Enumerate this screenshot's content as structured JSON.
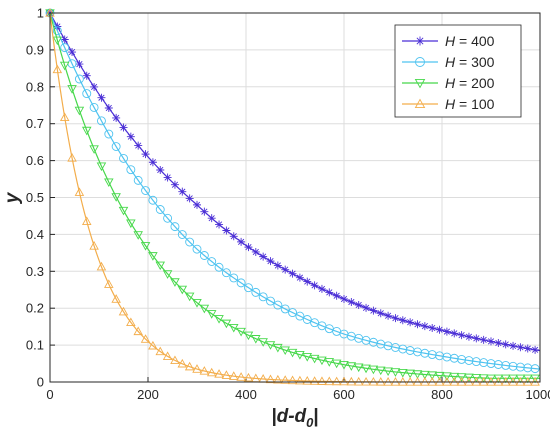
{
  "chart_data": {
    "type": "line",
    "xlabel": "|d-d0|",
    "xlabel_parts": {
      "main": "|d-d",
      "sub": "0",
      "end": "|"
    },
    "ylabel": "y",
    "xlim": [
      0,
      1000
    ],
    "ylim": [
      0,
      1
    ],
    "xticks": [
      "0",
      "200",
      "400",
      "600",
      "800",
      "1000"
    ],
    "yticks": [
      "0",
      "0.1",
      "0.2",
      "0.3",
      "0.4",
      "0.5",
      "0.6",
      "0.7",
      "0.8",
      "0.9",
      "1"
    ],
    "grid": true,
    "legend_position": "top-right",
    "x": [
      0,
      100,
      200,
      300,
      400,
      500,
      600,
      700,
      800,
      900,
      1000
    ],
    "series": [
      {
        "name": "H = 400",
        "marker": "asterisk",
        "color": "#4b2fd6",
        "values": [
          1,
          0.78,
          0.61,
          0.48,
          0.37,
          0.29,
          0.225,
          0.175,
          0.14,
          0.11,
          0.085
        ]
      },
      {
        "name": "H = 300",
        "marker": "circle",
        "color": "#4fc3f0",
        "values": [
          1,
          0.72,
          0.51,
          0.36,
          0.26,
          0.185,
          0.13,
          0.095,
          0.07,
          0.05,
          0.035
        ]
      },
      {
        "name": "H = 200",
        "marker": "triangle-down",
        "color": "#46d84a",
        "values": [
          1,
          0.6,
          0.36,
          0.215,
          0.13,
          0.078,
          0.047,
          0.028,
          0.017,
          0.01,
          0.01
        ]
      },
      {
        "name": "H = 100",
        "marker": "triangle-up",
        "color": "#f3ad4b",
        "values": [
          1,
          0.33,
          0.11,
          0.035,
          0.012,
          0.004,
          0.001,
          0.0,
          0.0,
          0.0,
          0.0
        ]
      }
    ]
  }
}
